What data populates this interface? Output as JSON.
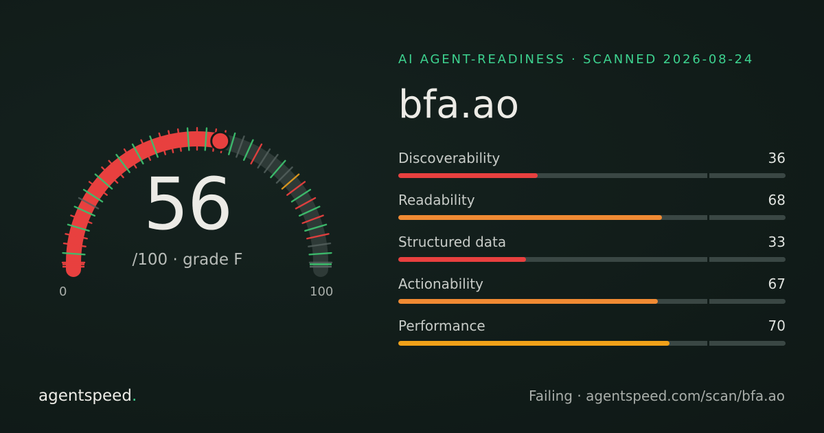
{
  "gauge": {
    "score": "56",
    "score_value": 56,
    "max": 100,
    "grade_text": "/100 · grade F",
    "axis_min": "0",
    "axis_max": "100",
    "fill_color": "#e8403f",
    "track_color": "#2e3a37",
    "tick_colors": {
      "green": "#3dbf6e",
      "red": "#e8403f",
      "orange": "#e09a1e",
      "gray": "#566360"
    },
    "ticks": [
      "red",
      "green",
      "red",
      "red",
      "green",
      "red",
      "green",
      "gray",
      "green",
      "red",
      "green",
      "red",
      "red",
      "green",
      "red",
      "green",
      "red",
      "green",
      "red",
      "red",
      "red",
      "green",
      "red",
      "green",
      "red",
      "red",
      "green",
      "gray",
      "green",
      "red",
      "gray",
      "gray",
      "green",
      "gray",
      "orange",
      "red",
      "green",
      "red",
      "green",
      "red",
      "green",
      "red",
      "gray",
      "green",
      "gray"
    ]
  },
  "header": {
    "eyebrow": "AI AGENT-READINESS · SCANNED 2026-08-24",
    "domain": "bfa.ao"
  },
  "metrics": [
    {
      "label": "Discoverability",
      "value": "36",
      "score": 36,
      "color": "#e8403f"
    },
    {
      "label": "Readability",
      "value": "68",
      "score": 68,
      "color": "#f08a33"
    },
    {
      "label": "Structured data",
      "value": "33",
      "score": 33,
      "color": "#e8403f"
    },
    {
      "label": "Actionability",
      "value": "67",
      "score": 67,
      "color": "#f08a33"
    },
    {
      "label": "Performance",
      "value": "70",
      "score": 70,
      "color": "#f0a119"
    }
  ],
  "footer": {
    "brand_text": "agentspeed",
    "brand_dot": ".",
    "status_text": "Failing · agentspeed.com/scan/bfa.ao"
  }
}
